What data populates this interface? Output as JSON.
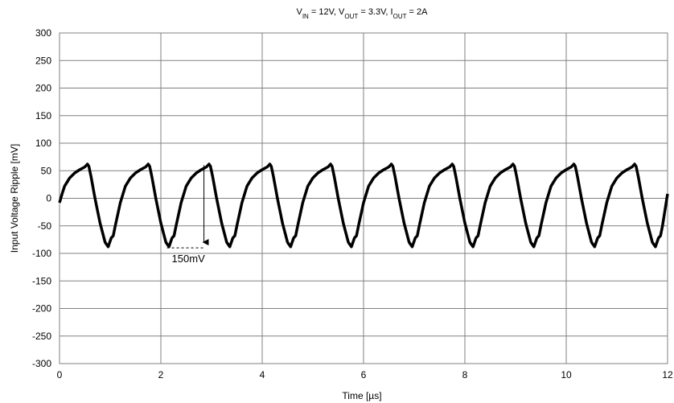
{
  "chart_data": {
    "type": "line",
    "title": {
      "parts": [
        {
          "text": "V",
          "sub": false
        },
        {
          "text": "IN",
          "sub": true
        },
        {
          "text": " = 12V, V",
          "sub": false
        },
        {
          "text": "OUT",
          "sub": true
        },
        {
          "text": " = 3.3V, I",
          "sub": false
        },
        {
          "text": "OUT",
          "sub": true
        },
        {
          "text": " = 2A",
          "sub": false
        }
      ]
    },
    "xlabel": "Time  [µs]",
    "ylabel": "Input Voltage Ripple   [mV]",
    "xlim": [
      0,
      12
    ],
    "ylim": [
      -300,
      300
    ],
    "x_ticks": [
      0,
      2,
      4,
      6,
      8,
      10,
      12
    ],
    "y_ticks": [
      300,
      250,
      200,
      150,
      100,
      50,
      0,
      -50,
      -100,
      -150,
      -200,
      -250,
      -300
    ],
    "x_tick_labels": [
      "0",
      "2",
      "4",
      "6",
      "8",
      "10",
      "12"
    ],
    "y_tick_labels": [
      "300",
      "250",
      "200",
      "150",
      "100",
      "50",
      "0",
      "-50",
      "-100",
      "-150",
      "-200",
      "-250",
      "-300"
    ],
    "grid": true,
    "line_color": "#000000",
    "series": [
      {
        "x": [
          0,
          0.05,
          0.1,
          0.2,
          0.3,
          0.4,
          0.5,
          0.55,
          0.58,
          0.62,
          0.7,
          0.8,
          0.9,
          0.96,
          1.02,
          1.06,
          1.1,
          1.2,
          1.3,
          1.4,
          1.5,
          1.6,
          1.7,
          1.75,
          1.78,
          1.82,
          1.9,
          2.0,
          2.1,
          2.16,
          2.22,
          2.26,
          2.3,
          2.4,
          2.5,
          2.6,
          2.7,
          2.8,
          2.9,
          2.95,
          2.98,
          3.02,
          3.1,
          3.2,
          3.3,
          3.36,
          3.42,
          3.46,
          3.5,
          3.6,
          3.7,
          3.8,
          3.9,
          4.0,
          4.1,
          4.15,
          4.18,
          4.22,
          4.3,
          4.4,
          4.5,
          4.56,
          4.62,
          4.66,
          4.7,
          4.8,
          4.9,
          5.0,
          5.1,
          5.2,
          5.3,
          5.35,
          5.38,
          5.42,
          5.5,
          5.6,
          5.7,
          5.76,
          5.82,
          5.86,
          5.9,
          6.0,
          6.1,
          6.2,
          6.3,
          6.4,
          6.5,
          6.55,
          6.58,
          6.62,
          6.7,
          6.8,
          6.9,
          6.96,
          7.02,
          7.06,
          7.1,
          7.2,
          7.3,
          7.4,
          7.5,
          7.6,
          7.7,
          7.75,
          7.78,
          7.82,
          7.9,
          8.0,
          8.1,
          8.16,
          8.22,
          8.26,
          8.3,
          8.4,
          8.5,
          8.6,
          8.7,
          8.8,
          8.9,
          8.95,
          8.98,
          9.02,
          9.1,
          9.2,
          9.3,
          9.36,
          9.42,
          9.46,
          9.5,
          9.6,
          9.7,
          9.8,
          9.9,
          10.0,
          10.1,
          10.15,
          10.18,
          10.22,
          10.3,
          10.4,
          10.5,
          10.56,
          10.62,
          10.66,
          10.7,
          10.8,
          10.9,
          11.0,
          11.1,
          11.2,
          11.3,
          11.35,
          11.38,
          11.42,
          11.5,
          11.6,
          11.7,
          11.76,
          11.82,
          11.86,
          11.9,
          12.0
        ],
        "y": [
          -8,
          8,
          22,
          37,
          46,
          52,
          57,
          62,
          58,
          40,
          0,
          -45,
          -80,
          -88,
          -72,
          -68,
          -50,
          -8,
          22,
          37,
          46,
          52,
          57,
          62,
          58,
          40,
          0,
          -45,
          -80,
          -88,
          -72,
          -68,
          -50,
          -8,
          22,
          37,
          46,
          52,
          57,
          62,
          58,
          40,
          0,
          -45,
          -80,
          -88,
          -72,
          -68,
          -50,
          -8,
          22,
          37,
          46,
          52,
          57,
          62,
          58,
          40,
          0,
          -45,
          -80,
          -88,
          -72,
          -68,
          -50,
          -8,
          22,
          37,
          46,
          52,
          57,
          62,
          58,
          40,
          0,
          -45,
          -80,
          -88,
          -72,
          -68,
          -50,
          -8,
          22,
          37,
          46,
          52,
          57,
          62,
          58,
          40,
          0,
          -45,
          -80,
          -88,
          -72,
          -68,
          -50,
          -8,
          22,
          37,
          46,
          52,
          57,
          62,
          58,
          40,
          0,
          -45,
          -80,
          -88,
          -72,
          -68,
          -50,
          -8,
          22,
          37,
          46,
          52,
          57,
          62,
          58,
          40,
          0,
          -45,
          -80,
          -88,
          -72,
          -68,
          -50,
          -8,
          22,
          37,
          46,
          52,
          57,
          62,
          58,
          40,
          0,
          -45,
          -80,
          -88,
          -72,
          -68,
          -50,
          -8,
          22,
          37,
          46,
          52,
          57,
          62,
          58,
          40,
          0,
          -45,
          -80,
          -88,
          -72,
          -68,
          -50,
          8
        ]
      }
    ],
    "annotation": {
      "text": "150mV",
      "arrow_x": 2.85,
      "arrow_from_y": 60,
      "arrow_to_y": -90,
      "dash_from_x": 2.12,
      "dash_to_x": 2.85,
      "dash_y": -90
    }
  }
}
